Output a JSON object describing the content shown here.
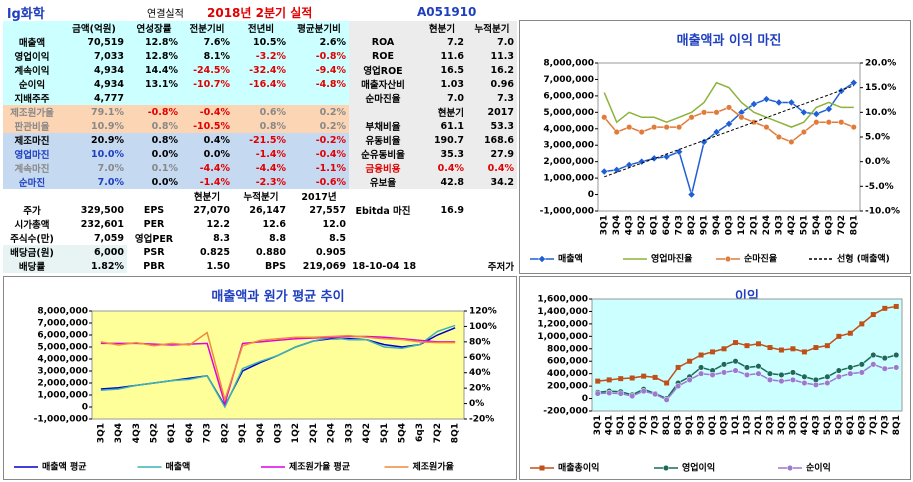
{
  "table": {
    "title": "lg화학",
    "subtitle": "연결실적",
    "period": "2018년 2분기 실적",
    "code": "A051910",
    "rows": [
      [
        null,
        "금액(억원)",
        "연성장률",
        "전분기비",
        "전년비",
        "평균분기비",
        null,
        "현분기",
        "누적분기"
      ],
      [
        "매출액",
        "70,519",
        "12.8%",
        "7.6%",
        "10.5%",
        "2.6%",
        "ROA",
        "7.2",
        "7.0"
      ],
      [
        "영업이익",
        "7,033",
        "12.8%",
        "8.1%",
        "-3.2%",
        "-0.8%",
        "ROE",
        "11.6",
        "11.3"
      ],
      [
        "계속이익",
        "4,934",
        "14.4%",
        "-24.5%",
        "-32.4%",
        "-9.4%",
        "영업ROE",
        "16.5",
        "16.2"
      ],
      [
        "순이익",
        "4,934",
        "13.1%",
        "-10.7%",
        "-16.4%",
        "-4.8%",
        "매출자산비",
        "1.03",
        "0.96"
      ],
      [
        "지배주주",
        "4,777",
        null,
        null,
        null,
        null,
        "순마진율",
        "7.0",
        "7.3"
      ],
      [
        "제조원가율",
        "79.1%",
        "-0.8%",
        "-0.4%",
        "0.6%",
        "0.2%",
        null,
        "현분기",
        "2017"
      ],
      [
        "판관비율",
        "10.9%",
        "0.8%",
        "-10.5%",
        "0.8%",
        "0.2%",
        "부채비율",
        "61.1",
        "53.3"
      ],
      [
        "제조마진",
        "20.9%",
        "0.8%",
        "0.4%",
        "-21.5%",
        "-0.2%",
        "유동비율",
        "190.7",
        "168.6"
      ],
      [
        "영업마진",
        "10.0%",
        "0.0%",
        "0.0%",
        "-1.4%",
        "-0.4%",
        "순유동비율",
        "35.3",
        "27.9"
      ],
      [
        "계속마진",
        "7.0%",
        "0.1%",
        "-4.4%",
        "-4.4%",
        "-1.1%",
        "금융비용",
        "0.4%",
        "0.4%"
      ],
      [
        "순마진",
        "7.0%",
        "0.0%",
        "-1.4%",
        "-2.3%",
        "-0.6%",
        "유보율",
        "42.8",
        "34.2"
      ],
      [
        null,
        null,
        null,
        "현분기",
        "누적분기",
        "2017년",
        null,
        null,
        null
      ],
      [
        "주가",
        "329,500",
        "EPS",
        "27,070",
        "26,147",
        "27,557",
        "Ebitda 마진",
        "16.9",
        null
      ],
      [
        "시가총액",
        "232,601",
        "PER",
        "12.2",
        "12.6",
        "12.0",
        null,
        null,
        null
      ],
      [
        "주식수(만)",
        "7,059",
        "영업PER",
        "8.3",
        "8.8",
        "8.5",
        null,
        null,
        null
      ],
      [
        "배당금(원)",
        "6,000",
        "PSR",
        "0.825",
        "0.880",
        "0.905",
        null,
        null,
        null
      ],
      [
        "배당률",
        "1.82%",
        "PBR",
        "1.50",
        "BPS",
        "219,069",
        "18-10-04 18",
        null,
        "주저가"
      ]
    ]
  },
  "chart_data": [
    {
      "type": "line",
      "title": "매출액과 이익 마진",
      "plot_background": "#ffffff",
      "categories": [
        "3Q1",
        "3Q4",
        "4Q3",
        "5Q2",
        "6Q1",
        "6Q4",
        "7Q3",
        "8Q2",
        "9Q1",
        "9Q4",
        "0Q3",
        "1Q2",
        "2Q1",
        "2Q4",
        "3Q3",
        "4Q2",
        "5Q1",
        "5Q4",
        "6Q3",
        "7Q2",
        "8Q1"
      ],
      "ylim": [
        -1000000,
        8000000
      ],
      "yticks": [
        {
          "value": -1000000,
          "label": "-1,000,000"
        },
        0,
        {
          "value": 1000000,
          "label": "1,000,000"
        },
        {
          "value": 2000000,
          "label": "2,000,000"
        },
        {
          "value": 3000000,
          "label": "3,000,000"
        },
        {
          "value": 4000000,
          "label": "4,000,000"
        },
        {
          "value": 5000000,
          "label": "5,000,000"
        },
        {
          "value": 6000000,
          "label": "6,000,000"
        },
        {
          "value": 7000000,
          "label": "7,000,000"
        },
        {
          "value": 8000000,
          "label": "8,000,000"
        }
      ],
      "y2lim": [
        -10,
        20
      ],
      "y2ticks": [
        {
          "value": -10,
          "label": "-10.0%"
        },
        {
          "value": -5,
          "label": "-5.0%"
        },
        {
          "value": 0,
          "label": "0.0%"
        },
        {
          "value": 5,
          "label": "5.0%"
        },
        {
          "value": 10,
          "label": "10.0%"
        },
        {
          "value": 15,
          "label": "15.0%"
        },
        {
          "value": 20,
          "label": "20.0%"
        }
      ],
      "series": [
        {
          "name": "매출액",
          "color": "#1f5fd6",
          "marker": "diamond",
          "values": [
            1400000,
            1500000,
            1800000,
            2000000,
            2200000,
            2300000,
            2600000,
            0,
            3200000,
            3800000,
            4300000,
            5000000,
            5500000,
            5800000,
            5600000,
            5600000,
            5000000,
            4900000,
            5200000,
            6300000,
            6800000
          ]
        },
        {
          "name": "영업마진율",
          "color": "#8db33a",
          "marker": "none",
          "axis": "y2",
          "values": [
            14,
            8,
            10,
            9,
            9,
            8,
            9,
            10,
            12,
            16,
            15,
            12,
            10,
            9,
            8,
            7,
            8,
            11,
            12,
            11,
            11
          ]
        },
        {
          "name": "순마진율",
          "color": "#e07b39",
          "marker": "circle",
          "axis": "y2",
          "values": [
            9,
            6,
            7,
            6,
            7,
            7,
            7,
            9,
            10,
            10,
            11,
            9,
            8,
            7,
            5,
            4,
            6,
            8,
            8,
            8,
            7
          ]
        }
      ],
      "trendline": {
        "name": "선형 (매출액)",
        "color": "#000000",
        "dash": true
      }
    },
    {
      "type": "line",
      "title": "매출액과 원가 평균 추이",
      "plot_background": "#ffff99",
      "categories": [
        "3Q1",
        "3Q4",
        "4Q3",
        "5Q2",
        "6Q1",
        "6Q4",
        "7Q3",
        "8Q2",
        "9Q1",
        "9Q4",
        "0Q3",
        "1Q2",
        "2Q1",
        "2Q4",
        "3Q3",
        "4Q2",
        "5Q1",
        "5Q4",
        "6q3",
        "7Q2",
        "8Q1"
      ],
      "ylim": [
        -1000000,
        8000000
      ],
      "yticks": [
        {
          "value": -1000000,
          "label": "-1,000,000"
        },
        0,
        {
          "value": 1000000,
          "label": "1,000,000"
        },
        {
          "value": 2000000,
          "label": "2,000,000"
        },
        {
          "value": 3000000,
          "label": "3,000,000"
        },
        {
          "value": 4000000,
          "label": "4,000,000"
        },
        {
          "value": 5000000,
          "label": "5,000,000"
        },
        {
          "value": 6000000,
          "label": "6,000,000"
        },
        {
          "value": 7000000,
          "label": "7,000,000"
        },
        {
          "value": 8000000,
          "label": "8,000,000"
        }
      ],
      "y2lim": [
        -20,
        120
      ],
      "y2ticks": [
        {
          "value": -20,
          "label": "-20%"
        },
        {
          "value": 0,
          "label": "0%"
        },
        {
          "value": 20,
          "label": "20%"
        },
        {
          "value": 40,
          "label": "40%"
        },
        {
          "value": 60,
          "label": "60%"
        },
        {
          "value": 80,
          "label": "80%"
        },
        {
          "value": 100,
          "label": "100%"
        },
        {
          "value": 120,
          "label": "120%"
        }
      ],
      "series": [
        {
          "name": "매출액 평균",
          "color": "#0000cc",
          "marker": "none",
          "values": [
            1500000,
            1600000,
            1800000,
            2000000,
            2200000,
            2400000,
            2600000,
            100000,
            3000000,
            3700000,
            4300000,
            5000000,
            5500000,
            5700000,
            5700000,
            5600000,
            5200000,
            5000000,
            5200000,
            6000000,
            6600000
          ]
        },
        {
          "name": "매출액",
          "color": "#3cb4b4",
          "marker": "none",
          "values": [
            1400000,
            1500000,
            1800000,
            2000000,
            2200000,
            2300000,
            2600000,
            0,
            3200000,
            3800000,
            4300000,
            5000000,
            5500000,
            5800000,
            5600000,
            5600000,
            5000000,
            4900000,
            5200000,
            6300000,
            6800000
          ]
        },
        {
          "name": "제조원가율 평균",
          "color": "#e000e0",
          "marker": "none",
          "axis": "y2",
          "values": [
            78,
            78,
            78,
            77,
            76,
            77,
            78,
            0,
            78,
            80,
            82,
            84,
            85,
            86,
            87,
            87,
            86,
            84,
            82,
            80,
            80
          ]
        },
        {
          "name": "제조원가율",
          "color": "#f08a3c",
          "marker": "none",
          "axis": "y2",
          "values": [
            80,
            76,
            79,
            75,
            78,
            76,
            92,
            5,
            75,
            82,
            84,
            86,
            86,
            87,
            88,
            86,
            84,
            83,
            80,
            79,
            79
          ]
        }
      ]
    },
    {
      "type": "line",
      "title": "이익",
      "plot_background": "#ccffff",
      "categories": [
        "3Q1",
        "4Q1",
        "5Q1",
        "6Q1",
        "7Q1",
        "7Q3",
        "8Q1",
        "8Q3",
        "9Q1",
        "9Q3",
        "0Q1",
        "0Q3",
        "1Q1",
        "1Q3",
        "2Q1",
        "2Q3",
        "3Q1",
        "3Q3",
        "4Q1",
        "4Q3",
        "5Q1",
        "5Q3",
        "6Q1",
        "6Q3",
        "7Q1",
        "7Q3",
        "8Q1"
      ],
      "ylim": [
        -200000,
        1600000
      ],
      "yticks": [
        {
          "value": -200000,
          "label": "-200,000"
        },
        0,
        {
          "value": 200000,
          "label": "200,000"
        },
        {
          "value": 400000,
          "label": "400,000"
        },
        {
          "value": 600000,
          "label": "600,000"
        },
        {
          "value": 800000,
          "label": "800,000"
        },
        {
          "value": 1000000,
          "label": "1,000,000"
        },
        {
          "value": 1200000,
          "label": "1,200,000"
        },
        {
          "value": 1400000,
          "label": "1,400,000"
        },
        {
          "value": 1600000,
          "label": "1,600,000"
        }
      ],
      "series": [
        {
          "name": "매출총이익",
          "color": "#c0501a",
          "marker": "square",
          "values": [
            280000,
            300000,
            320000,
            330000,
            360000,
            340000,
            250000,
            500000,
            600000,
            700000,
            750000,
            800000,
            900000,
            850000,
            880000,
            820000,
            780000,
            800000,
            750000,
            820000,
            850000,
            1000000,
            1050000,
            1200000,
            1350000,
            1450000,
            1480000
          ]
        },
        {
          "name": "영업이익",
          "color": "#1a6a5a",
          "marker": "circle",
          "values": [
            100000,
            120000,
            110000,
            60000,
            150000,
            80000,
            0,
            250000,
            350000,
            500000,
            450000,
            550000,
            600000,
            500000,
            520000,
            400000,
            380000,
            420000,
            350000,
            300000,
            350000,
            450000,
            500000,
            550000,
            700000,
            650000,
            700000
          ]
        },
        {
          "name": "순이익",
          "color": "#9a7ad0",
          "marker": "circle",
          "values": [
            80000,
            90000,
            80000,
            40000,
            120000,
            70000,
            -20000,
            200000,
            300000,
            400000,
            380000,
            420000,
            450000,
            380000,
            400000,
            300000,
            280000,
            300000,
            250000,
            220000,
            250000,
            350000,
            400000,
            420000,
            550000,
            480000,
            500000
          ]
        }
      ]
    }
  ]
}
